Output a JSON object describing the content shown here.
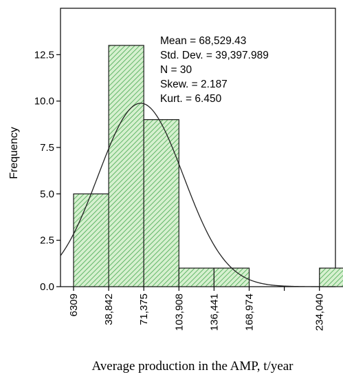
{
  "chart_data": {
    "type": "bar",
    "ylabel": "Frequency",
    "xlabel": "Average production in the AMP, t/year",
    "x_tick_labels": [
      "6309",
      "38,842",
      "71,375",
      "103,908",
      "136,441",
      "168,974",
      "234,040"
    ],
    "bin_width": 32533,
    "bins": [
      {
        "x0": 6309,
        "x1": 38842,
        "count": 5
      },
      {
        "x0": 38842,
        "x1": 71375,
        "count": 13
      },
      {
        "x0": 71375,
        "x1": 103908,
        "count": 9
      },
      {
        "x0": 103908,
        "x1": 136441,
        "count": 1
      },
      {
        "x0": 136441,
        "x1": 168974,
        "count": 1
      },
      {
        "x0": 168974,
        "x1": 201507,
        "count": 0
      },
      {
        "x0": 201507,
        "x1": 234040,
        "count": 0
      },
      {
        "x0": 234040,
        "x1": 266573,
        "count": 1
      }
    ],
    "y_ticks": [
      0.0,
      2.5,
      5.0,
      7.5,
      10.0,
      12.5
    ],
    "y_tick_labels": [
      "0.0",
      "2.5",
      "5.0",
      "7.5",
      "10.0",
      "12.5"
    ],
    "ylim": [
      0,
      15
    ],
    "normal_curve": {
      "mean": 68529.43,
      "sd": 39397.989,
      "n": 30
    },
    "stats": [
      "Mean = 68,529.43",
      "Std. Dev. = 39,397.989",
      "N = 30",
      "Skew. = 2.187",
      "Kurt. = 6.450"
    ],
    "colors": {
      "bar_fill": "#d6f0cf",
      "bar_hatch": "#46a84f",
      "bar_edge": "#1a1a1a",
      "curve": "#000000"
    },
    "grid": false
  }
}
